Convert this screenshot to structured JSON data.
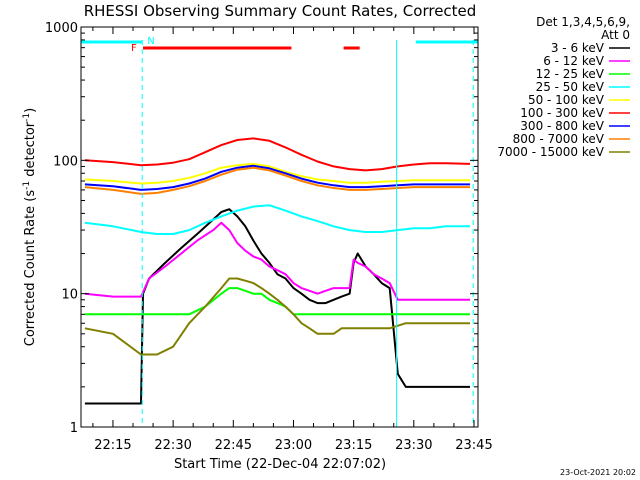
{
  "chart_data": {
    "type": "line",
    "title": "RHESSI Observing Summary Count Rates, Corrected",
    "xlabel": "Start Time (22-Dec-04 22:07:02)",
    "ylabel": "Corrected Count Rate (s",
    "ylabel_sup1": "-1",
    "ylabel_mid": " detector",
    "ylabel_sup2": "-1",
    "ylabel_end": ")",
    "yscale": "log",
    "ylim": [
      1,
      1000
    ],
    "xlim_minutes": [
      7.0333,
      106.0
    ],
    "x_ticks": [
      {
        "m": 15,
        "label": "22:15"
      },
      {
        "m": 30,
        "label": "22:30"
      },
      {
        "m": 45,
        "label": "22:45"
      },
      {
        "m": 60,
        "label": "23:00"
      },
      {
        "m": 75,
        "label": "23:15"
      },
      {
        "m": 90,
        "label": "23:30"
      },
      {
        "m": 105,
        "label": "23:45"
      }
    ],
    "y_ticks": [
      {
        "v": 1,
        "label": "1"
      },
      {
        "v": 10,
        "label": "10"
      },
      {
        "v": 100,
        "label": "100"
      },
      {
        "v": 1000,
        "label": "1000"
      }
    ],
    "legend_header": [
      "Det 1,3,4,5,6,9,",
      "Att 0"
    ],
    "legend_position": "right",
    "series": [
      {
        "name": "3 - 6 keV",
        "color": "#000000",
        "x": [
          8,
          15,
          22,
          22.5,
          24,
          28,
          32,
          36,
          40,
          42,
          44,
          46,
          48,
          50,
          52,
          54,
          56,
          58,
          60,
          62,
          64,
          66,
          68,
          70,
          72,
          74,
          75,
          76,
          78,
          80,
          82,
          84,
          86,
          88,
          90,
          95,
          100,
          104
        ],
        "values": [
          1.5,
          1.5,
          1.5,
          10,
          13,
          17,
          22,
          28,
          36,
          41,
          43,
          38,
          32,
          25,
          20,
          17,
          14,
          13,
          11,
          10,
          9,
          8.5,
          8.5,
          9,
          9.5,
          10,
          17,
          20,
          16,
          14,
          12,
          11,
          2.5,
          2,
          2,
          2,
          2,
          2
        ]
      },
      {
        "name": "6 - 12 keV",
        "color": "#ff00ff",
        "x": [
          8,
          15,
          22,
          24,
          28,
          32,
          36,
          40,
          42,
          44,
          46,
          48,
          50,
          52,
          54,
          56,
          58,
          60,
          62,
          64,
          66,
          68,
          70,
          72,
          74,
          75,
          76,
          78,
          80,
          82,
          84,
          86,
          88,
          90,
          95,
          100,
          104
        ],
        "values": [
          10,
          9.5,
          9.5,
          13,
          16,
          20,
          25,
          30,
          34,
          30,
          24,
          21,
          19,
          18,
          16,
          15,
          14,
          12,
          11,
          10.5,
          10,
          10.5,
          11,
          11,
          11,
          18,
          17,
          16,
          14,
          13,
          12,
          9,
          9,
          9,
          9,
          9,
          9
        ]
      },
      {
        "name": "12 - 25 keV",
        "color": "#00ff00",
        "x": [
          8,
          15,
          22,
          26,
          30,
          34,
          38,
          42,
          44,
          46,
          48,
          50,
          52,
          54,
          56,
          58,
          60,
          62,
          64,
          66,
          68,
          70,
          72,
          74,
          76,
          80,
          84,
          88,
          92,
          96,
          100,
          104
        ],
        "values": [
          7,
          7,
          7,
          7,
          7,
          7,
          8,
          10,
          11,
          11,
          10.5,
          10,
          10,
          9,
          8.5,
          8,
          7,
          7,
          7,
          7,
          7,
          7,
          7,
          7,
          7,
          7,
          7,
          7,
          7,
          7,
          7,
          7
        ]
      },
      {
        "name": "25 - 50 keV",
        "color": "#00ffff",
        "x": [
          8,
          15,
          22,
          26,
          30,
          34,
          38,
          42,
          46,
          50,
          54,
          58,
          62,
          66,
          70,
          74,
          78,
          82,
          86,
          90,
          94,
          98,
          104
        ],
        "values": [
          34,
          32,
          29,
          28,
          28,
          30,
          34,
          38,
          42,
          45,
          46,
          42,
          38,
          35,
          32,
          30,
          29,
          29,
          30,
          31,
          31,
          32,
          32
        ]
      },
      {
        "name": "50 - 100 keV",
        "color": "#ffff00",
        "x": [
          8,
          15,
          22,
          26,
          30,
          34,
          38,
          42,
          46,
          50,
          54,
          58,
          62,
          66,
          70,
          74,
          78,
          82,
          86,
          90,
          94,
          98,
          104
        ],
        "values": [
          72,
          70,
          67,
          68,
          70,
          74,
          80,
          88,
          92,
          94,
          90,
          82,
          76,
          72,
          70,
          68,
          68,
          69,
          70,
          71,
          71,
          71,
          71
        ]
      },
      {
        "name": "100 - 300 keV",
        "color": "#ff0000",
        "x": [
          8,
          15,
          22,
          26,
          30,
          34,
          38,
          42,
          46,
          50,
          54,
          58,
          62,
          66,
          70,
          74,
          78,
          82,
          86,
          90,
          94,
          98,
          104
        ],
        "values": [
          100,
          97,
          92,
          93,
          96,
          102,
          115,
          130,
          142,
          146,
          140,
          125,
          110,
          98,
          90,
          86,
          84,
          86,
          90,
          93,
          95,
          95,
          94
        ]
      },
      {
        "name": "300 - 800 keV",
        "color": "#0000ff",
        "x": [
          8,
          15,
          22,
          26,
          30,
          34,
          38,
          42,
          46,
          50,
          54,
          58,
          62,
          66,
          70,
          74,
          78,
          82,
          86,
          90,
          94,
          98,
          104
        ],
        "values": [
          66,
          64,
          60,
          61,
          63,
          67,
          73,
          82,
          88,
          91,
          87,
          80,
          73,
          68,
          65,
          63,
          63,
          64,
          65,
          66,
          66,
          66,
          66
        ]
      },
      {
        "name": "800 - 7000 keV",
        "color": "#ff8000",
        "x": [
          8,
          15,
          22,
          26,
          30,
          34,
          38,
          42,
          46,
          50,
          54,
          58,
          62,
          66,
          70,
          74,
          78,
          82,
          86,
          90,
          94,
          98,
          104
        ],
        "values": [
          63,
          60,
          56,
          57,
          60,
          64,
          70,
          78,
          85,
          88,
          84,
          77,
          70,
          65,
          62,
          60,
          60,
          61,
          62,
          63,
          63,
          63,
          63
        ]
      },
      {
        "name": "7000 - 15000 keV",
        "color": "#808000",
        "x": [
          8,
          15,
          22,
          26,
          30,
          34,
          38,
          42,
          44,
          46,
          48,
          50,
          52,
          54,
          56,
          58,
          60,
          62,
          64,
          66,
          68,
          70,
          72,
          74,
          76,
          80,
          84,
          88,
          92,
          96,
          100,
          104
        ],
        "values": [
          5.5,
          5,
          3.5,
          3.5,
          4,
          6,
          8,
          11,
          13,
          13,
          12.5,
          12,
          11,
          10,
          9,
          8,
          7,
          6,
          5.5,
          5,
          5,
          5,
          5.5,
          5.5,
          5.5,
          5.5,
          5.5,
          6,
          6,
          6,
          6,
          6
        ]
      }
    ],
    "annotations": {
      "attenuator_bar": {
        "color": "#00ffff",
        "label": "N",
        "segments": [
          [
            7.0333,
            22.3
          ],
          [
            90.5,
            106.0
          ]
        ]
      },
      "flare_bar": {
        "color": "#ff0000",
        "label": "F",
        "segments": [
          [
            22.5,
            59.5
          ],
          [
            72.5,
            76.5
          ]
        ]
      },
      "vertical_lines": [
        {
          "m": 7.0333,
          "style": "solid"
        },
        {
          "m": 22.3,
          "style": "dashed"
        },
        {
          "m": 85.7,
          "style": "solid"
        },
        {
          "m": 104.8,
          "style": "dashed"
        }
      ]
    }
  },
  "footer": {
    "timestamp": "23-Oct-2021 20:02"
  }
}
